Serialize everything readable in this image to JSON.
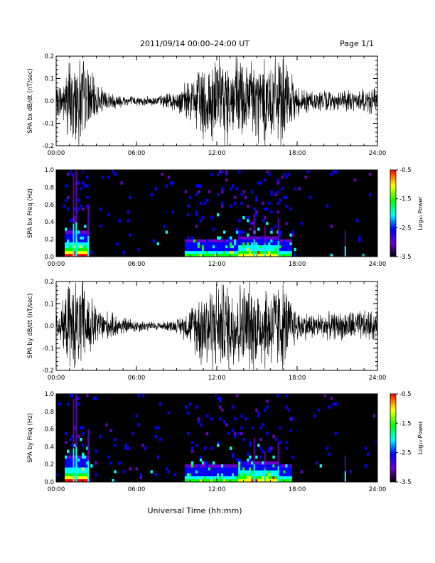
{
  "header": {
    "title": "2011/09/14  00:00–24:00 UT",
    "page": "Page 1/1"
  },
  "footer": {
    "xlabel": "Universal Time (hh:mm)"
  },
  "colorbar": {
    "label": "Log₁₀ Power",
    "ticks": [
      "-0.5",
      "-1.5",
      "-2.5",
      "-3.5"
    ],
    "colors": [
      "#ff0000",
      "#ffff00",
      "#00ff00",
      "#00ffff",
      "#0000ff",
      "#6a00c8",
      "#000000"
    ]
  },
  "chart_data": [
    {
      "type": "line",
      "ylabel": "SPA bx dB/dt (nT/sec)",
      "xlim": [
        "00:00",
        "24:00"
      ],
      "x_ticks": [
        "00:00",
        "06:00",
        "12:00",
        "18:00",
        "24:00"
      ],
      "ylim": [
        -0.2,
        0.2
      ],
      "y_ticks": [
        "-0.2",
        "-0.1",
        "0.0",
        "0.1",
        "0.2"
      ],
      "series": [
        {
          "x": [
            "00:00",
            "00:30",
            "01:00",
            "01:30",
            "02:00",
            "02:30",
            "03:00",
            "04:00",
            "05:00",
            "06:00",
            "07:00",
            "08:00",
            "09:00",
            "10:00",
            "10:30",
            "11:00",
            "12:00",
            "13:00",
            "14:00",
            "15:00",
            "16:00",
            "17:00",
            "17:30",
            "18:00",
            "19:00",
            "20:00",
            "21:00",
            "22:00",
            "23:00",
            "24:00"
          ],
          "amplitude": [
            0.06,
            0.1,
            0.2,
            0.2,
            0.2,
            0.14,
            0.08,
            0.04,
            0.03,
            0.02,
            0.02,
            0.03,
            0.05,
            0.09,
            0.13,
            0.2,
            0.2,
            0.2,
            0.2,
            0.2,
            0.2,
            0.2,
            0.12,
            0.07,
            0.05,
            0.05,
            0.04,
            0.05,
            0.06,
            0.06
          ]
        }
      ]
    },
    {
      "type": "heatmap",
      "ylabel": "SPA bx Freq (Hz)",
      "xlim": [
        "00:00",
        "24:00"
      ],
      "x_ticks": [
        "00:00",
        "06:00",
        "12:00",
        "18:00",
        "24:00"
      ],
      "ylim": [
        0.0,
        1.0
      ],
      "y_ticks": [
        "0.0",
        "0.2",
        "0.4",
        "0.6",
        "0.8",
        "1.0"
      ],
      "zlim": [
        -3.5,
        -0.5
      ]
    },
    {
      "type": "line",
      "ylabel": "SPA by dB/dt (nT/sec)",
      "xlim": [
        "00:00",
        "24:00"
      ],
      "x_ticks": [
        "00:00",
        "06:00",
        "12:00",
        "18:00",
        "24:00"
      ],
      "ylim": [
        -0.2,
        0.2
      ],
      "y_ticks": [
        "-0.2",
        "-0.1",
        "0.0",
        "0.1",
        "0.2"
      ],
      "series": [
        {
          "x": [
            "00:00",
            "00:30",
            "01:00",
            "01:30",
            "02:00",
            "02:30",
            "03:00",
            "04:00",
            "05:00",
            "06:00",
            "07:00",
            "08:00",
            "09:00",
            "10:00",
            "10:30",
            "11:00",
            "12:00",
            "13:00",
            "14:00",
            "15:00",
            "16:00",
            "17:00",
            "17:30",
            "18:00",
            "19:00",
            "20:00",
            "21:00",
            "22:00",
            "23:00",
            "24:00"
          ],
          "amplitude": [
            0.05,
            0.1,
            0.2,
            0.2,
            0.2,
            0.15,
            0.09,
            0.06,
            0.04,
            0.03,
            0.02,
            0.02,
            0.03,
            0.08,
            0.14,
            0.2,
            0.2,
            0.2,
            0.2,
            0.2,
            0.2,
            0.2,
            0.13,
            0.07,
            0.06,
            0.06,
            0.06,
            0.07,
            0.07,
            0.07
          ]
        }
      ]
    },
    {
      "type": "heatmap",
      "ylabel": "SPA by Freq (Hz)",
      "xlim": [
        "00:00",
        "24:00"
      ],
      "x_ticks": [
        "00:00",
        "06:00",
        "12:00",
        "18:00",
        "24:00"
      ],
      "ylim": [
        0.0,
        1.0
      ],
      "y_ticks": [
        "0.0",
        "0.2",
        "0.4",
        "0.6",
        "0.8",
        "1.0"
      ],
      "zlim": [
        -3.5,
        -0.5
      ]
    }
  ]
}
